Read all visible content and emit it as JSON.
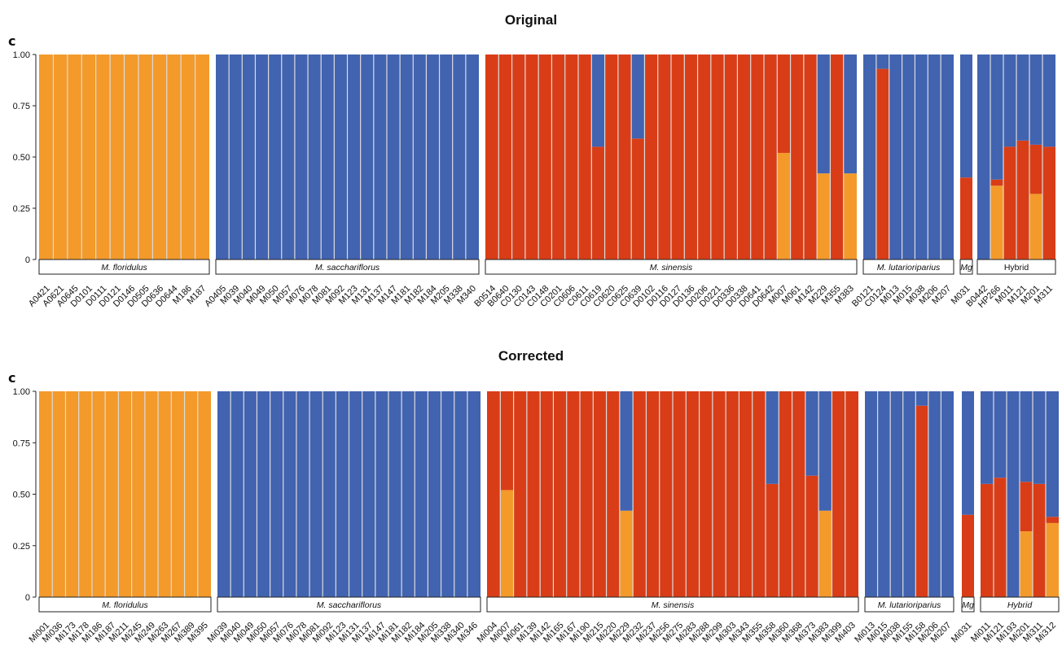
{
  "colors": {
    "orange": "#f39a2a",
    "blue": "#4163b0",
    "red": "#d93d17",
    "separator": "#dcdcdc"
  },
  "chart_data": [
    {
      "type": "bar",
      "stacked": true,
      "title": "Original",
      "panel_label": "c",
      "ylim": [
        0,
        1
      ],
      "yticks": [
        "0",
        "0.25",
        "0.50",
        "0.75",
        "1.00"
      ],
      "series_order": [
        "orange",
        "red",
        "blue"
      ],
      "groups": [
        {
          "label": "M. floridulus",
          "italic": true,
          "samples": [
            {
              "id": "A0421",
              "orange": 1,
              "red": 0
            },
            {
              "id": "A0621",
              "orange": 1,
              "red": 0
            },
            {
              "id": "A0645",
              "orange": 1,
              "red": 0
            },
            {
              "id": "D0101",
              "orange": 1,
              "red": 0
            },
            {
              "id": "D0111",
              "orange": 1,
              "red": 0
            },
            {
              "id": "D0121",
              "orange": 1,
              "red": 0
            },
            {
              "id": "D0146",
              "orange": 1,
              "red": 0
            },
            {
              "id": "D0505",
              "orange": 1,
              "red": 0
            },
            {
              "id": "D0636",
              "orange": 1,
              "red": 0
            },
            {
              "id": "D0644",
              "orange": 1,
              "red": 0
            },
            {
              "id": "M186",
              "orange": 1,
              "red": 0
            },
            {
              "id": "M187",
              "orange": 1,
              "red": 0
            }
          ]
        },
        {
          "label": "M. sacchariflorus",
          "italic": true,
          "samples": [
            {
              "id": "A0405",
              "orange": 0,
              "red": 0
            },
            {
              "id": "M039",
              "orange": 0,
              "red": 0
            },
            {
              "id": "M040",
              "orange": 0,
              "red": 0
            },
            {
              "id": "M049",
              "orange": 0,
              "red": 0
            },
            {
              "id": "M050",
              "orange": 0,
              "red": 0
            },
            {
              "id": "M057",
              "orange": 0,
              "red": 0
            },
            {
              "id": "M076",
              "orange": 0,
              "red": 0
            },
            {
              "id": "M078",
              "orange": 0,
              "red": 0
            },
            {
              "id": "M081",
              "orange": 0,
              "red": 0
            },
            {
              "id": "M092",
              "orange": 0,
              "red": 0
            },
            {
              "id": "M123",
              "orange": 0,
              "red": 0
            },
            {
              "id": "M131",
              "orange": 0,
              "red": 0
            },
            {
              "id": "M137",
              "orange": 0,
              "red": 0
            },
            {
              "id": "M147",
              "orange": 0,
              "red": 0
            },
            {
              "id": "M181",
              "orange": 0,
              "red": 0
            },
            {
              "id": "M182",
              "orange": 0,
              "red": 0
            },
            {
              "id": "M184",
              "orange": 0,
              "red": 0
            },
            {
              "id": "M205",
              "orange": 0,
              "red": 0
            },
            {
              "id": "M338",
              "orange": 0,
              "red": 0
            },
            {
              "id": "M340",
              "orange": 0,
              "red": 0
            }
          ]
        },
        {
          "label": "M. sinensis",
          "italic": true,
          "samples": [
            {
              "id": "B0514",
              "orange": 0,
              "red": 1
            },
            {
              "id": "B0640",
              "orange": 0,
              "red": 1
            },
            {
              "id": "C0130",
              "orange": 0,
              "red": 1
            },
            {
              "id": "C0143",
              "orange": 0,
              "red": 1
            },
            {
              "id": "C0148",
              "orange": 0,
              "red": 1
            },
            {
              "id": "C0201",
              "orange": 0,
              "red": 1
            },
            {
              "id": "C0606",
              "orange": 0,
              "red": 1
            },
            {
              "id": "C0611",
              "orange": 0,
              "red": 1
            },
            {
              "id": "C0619",
              "orange": 0,
              "red": 0.55
            },
            {
              "id": "C0620",
              "orange": 0,
              "red": 1
            },
            {
              "id": "C0625",
              "orange": 0,
              "red": 1
            },
            {
              "id": "C0639",
              "orange": 0,
              "red": 0.59
            },
            {
              "id": "D0102",
              "orange": 0,
              "red": 1
            },
            {
              "id": "D0116",
              "orange": 0,
              "red": 1
            },
            {
              "id": "D0127",
              "orange": 0,
              "red": 1
            },
            {
              "id": "D0136",
              "orange": 0,
              "red": 1
            },
            {
              "id": "D0206",
              "orange": 0,
              "red": 1
            },
            {
              "id": "D0221",
              "orange": 0,
              "red": 1
            },
            {
              "id": "D0336",
              "orange": 0,
              "red": 1
            },
            {
              "id": "D0338",
              "orange": 0,
              "red": 1
            },
            {
              "id": "D0641",
              "orange": 0,
              "red": 1
            },
            {
              "id": "D0642",
              "orange": 0,
              "red": 1
            },
            {
              "id": "M007",
              "orange": 0.52,
              "red": 0.48
            },
            {
              "id": "M061",
              "orange": 0,
              "red": 1
            },
            {
              "id": "M142",
              "orange": 0,
              "red": 1
            },
            {
              "id": "M229",
              "orange": 0.42,
              "red": 0
            },
            {
              "id": "M355",
              "orange": 0,
              "red": 1
            },
            {
              "id": "M383",
              "orange": 0.42,
              "red": 0
            }
          ]
        },
        {
          "label": "M. lutarioriparius",
          "italic": true,
          "samples": [
            {
              "id": "B0121",
              "orange": 0,
              "red": 0
            },
            {
              "id": "C0124",
              "orange": 0,
              "red": 0.93
            },
            {
              "id": "M013",
              "orange": 0,
              "red": 0
            },
            {
              "id": "M015",
              "orange": 0,
              "red": 0
            },
            {
              "id": "M038",
              "orange": 0,
              "red": 0
            },
            {
              "id": "M206",
              "orange": 0,
              "red": 0
            },
            {
              "id": "M207",
              "orange": 0,
              "red": 0
            }
          ]
        },
        {
          "label": "Mg",
          "italic": true,
          "samples": [
            {
              "id": "M031",
              "orange": 0,
              "red": 0.4
            }
          ]
        },
        {
          "label": "Hybrid",
          "italic": false,
          "samples": [
            {
              "id": "B0442",
              "orange": 0,
              "red": 0
            },
            {
              "id": "HP266",
              "orange": 0.36,
              "red": 0.03
            },
            {
              "id": "M011",
              "orange": 0,
              "red": 0.55
            },
            {
              "id": "M121",
              "orange": 0,
              "red": 0.58
            },
            {
              "id": "M201",
              "orange": 0.32,
              "red": 0.24
            },
            {
              "id": "M311",
              "orange": 0,
              "red": 0.55
            }
          ]
        }
      ]
    },
    {
      "type": "bar",
      "stacked": true,
      "title": "Corrected",
      "panel_label": "c",
      "ylim": [
        0,
        1
      ],
      "yticks": [
        "0",
        "0.25",
        "0.50",
        "0.75",
        "1.00"
      ],
      "series_order": [
        "orange",
        "red",
        "blue"
      ],
      "groups": [
        {
          "label": "M. floridulus",
          "italic": true,
          "samples": [
            {
              "id": "Mi001",
              "orange": 1,
              "red": 0
            },
            {
              "id": "Mi036",
              "orange": 1,
              "red": 0
            },
            {
              "id": "Mi173",
              "orange": 1,
              "red": 0
            },
            {
              "id": "Mi178",
              "orange": 1,
              "red": 0
            },
            {
              "id": "Mi186",
              "orange": 1,
              "red": 0
            },
            {
              "id": "Mi187",
              "orange": 1,
              "red": 0
            },
            {
              "id": "Mi211",
              "orange": 1,
              "red": 0
            },
            {
              "id": "Mi245",
              "orange": 1,
              "red": 0
            },
            {
              "id": "Mi249",
              "orange": 1,
              "red": 0
            },
            {
              "id": "Mi263",
              "orange": 1,
              "red": 0
            },
            {
              "id": "Mi267",
              "orange": 1,
              "red": 0
            },
            {
              "id": "Mi389",
              "orange": 1,
              "red": 0
            },
            {
              "id": "Mi395",
              "orange": 1,
              "red": 0
            }
          ]
        },
        {
          "label": "M. sacchariflorus",
          "italic": true,
          "samples": [
            {
              "id": "Mi039",
              "orange": 0,
              "red": 0
            },
            {
              "id": "Mi040",
              "orange": 0,
              "red": 0
            },
            {
              "id": "Mi049",
              "orange": 0,
              "red": 0
            },
            {
              "id": "Mi050",
              "orange": 0,
              "red": 0
            },
            {
              "id": "Mi057",
              "orange": 0,
              "red": 0
            },
            {
              "id": "Mi076",
              "orange": 0,
              "red": 0
            },
            {
              "id": "Mi078",
              "orange": 0,
              "red": 0
            },
            {
              "id": "Mi081",
              "orange": 0,
              "red": 0
            },
            {
              "id": "Mi092",
              "orange": 0,
              "red": 0
            },
            {
              "id": "Mi123",
              "orange": 0,
              "red": 0
            },
            {
              "id": "Mi131",
              "orange": 0,
              "red": 0
            },
            {
              "id": "Mi137",
              "orange": 0,
              "red": 0
            },
            {
              "id": "Mi147",
              "orange": 0,
              "red": 0
            },
            {
              "id": "Mi181",
              "orange": 0,
              "red": 0
            },
            {
              "id": "Mi182",
              "orange": 0,
              "red": 0
            },
            {
              "id": "Mi184",
              "orange": 0,
              "red": 0
            },
            {
              "id": "Mi205",
              "orange": 0,
              "red": 0
            },
            {
              "id": "Mi338",
              "orange": 0,
              "red": 0
            },
            {
              "id": "Mi340",
              "orange": 0,
              "red": 0
            },
            {
              "id": "Mi346",
              "orange": 0,
              "red": 0
            }
          ]
        },
        {
          "label": "M. sinensis",
          "italic": true,
          "samples": [
            {
              "id": "Mi004",
              "orange": 0,
              "red": 1
            },
            {
              "id": "Mi007",
              "orange": 0.52,
              "red": 0.48
            },
            {
              "id": "Mi061",
              "orange": 0,
              "red": 1
            },
            {
              "id": "Mi139",
              "orange": 0,
              "red": 1
            },
            {
              "id": "Mi142",
              "orange": 0,
              "red": 1
            },
            {
              "id": "Mi165",
              "orange": 0,
              "red": 1
            },
            {
              "id": "Mi167",
              "orange": 0,
              "red": 1
            },
            {
              "id": "Mi190",
              "orange": 0,
              "red": 1
            },
            {
              "id": "Mi215",
              "orange": 0,
              "red": 1
            },
            {
              "id": "Mi220",
              "orange": 0,
              "red": 1
            },
            {
              "id": "Mi229",
              "orange": 0.42,
              "red": 0
            },
            {
              "id": "Mi232",
              "orange": 0,
              "red": 1
            },
            {
              "id": "Mi237",
              "orange": 0,
              "red": 1
            },
            {
              "id": "Mi256",
              "orange": 0,
              "red": 1
            },
            {
              "id": "Mi275",
              "orange": 0,
              "red": 1
            },
            {
              "id": "Mi283",
              "orange": 0,
              "red": 1
            },
            {
              "id": "Mi288",
              "orange": 0,
              "red": 1
            },
            {
              "id": "Mi299",
              "orange": 0,
              "red": 1
            },
            {
              "id": "Mi303",
              "orange": 0,
              "red": 1
            },
            {
              "id": "Mi343",
              "orange": 0,
              "red": 1
            },
            {
              "id": "Mi355",
              "orange": 0,
              "red": 1
            },
            {
              "id": "Mi358",
              "orange": 0,
              "red": 0.55
            },
            {
              "id": "Mi360",
              "orange": 0,
              "red": 1
            },
            {
              "id": "Mi368",
              "orange": 0,
              "red": 1
            },
            {
              "id": "Mi373",
              "orange": 0,
              "red": 0.59
            },
            {
              "id": "Mi383",
              "orange": 0.42,
              "red": 0
            },
            {
              "id": "Mi399",
              "orange": 0,
              "red": 1
            },
            {
              "id": "Mi403",
              "orange": 0,
              "red": 1
            }
          ]
        },
        {
          "label": "M. lutarioriparius",
          "italic": true,
          "samples": [
            {
              "id": "Mi013",
              "orange": 0,
              "red": 0
            },
            {
              "id": "Mi015",
              "orange": 0,
              "red": 0
            },
            {
              "id": "Mi038",
              "orange": 0,
              "red": 0
            },
            {
              "id": "Mi155",
              "orange": 0,
              "red": 0
            },
            {
              "id": "Mi158",
              "orange": 0,
              "red": 0.93
            },
            {
              "id": "Mi206",
              "orange": 0,
              "red": 0
            },
            {
              "id": "Mi207",
              "orange": 0,
              "red": 0
            }
          ]
        },
        {
          "label": "Mg",
          "italic": true,
          "samples": [
            {
              "id": "Mi031",
              "orange": 0,
              "red": 0.4
            }
          ]
        },
        {
          "label": "Hybrid",
          "italic": true,
          "samples": [
            {
              "id": "Mi011",
              "orange": 0,
              "red": 0.55
            },
            {
              "id": "Mi121",
              "orange": 0,
              "red": 0.58
            },
            {
              "id": "Mi193",
              "orange": 0,
              "red": 0
            },
            {
              "id": "Mi201",
              "orange": 0.32,
              "red": 0.24
            },
            {
              "id": "Mi311",
              "orange": 0,
              "red": 0.55
            },
            {
              "id": "Mi312",
              "orange": 0.36,
              "red": 0.03
            }
          ]
        }
      ]
    }
  ]
}
